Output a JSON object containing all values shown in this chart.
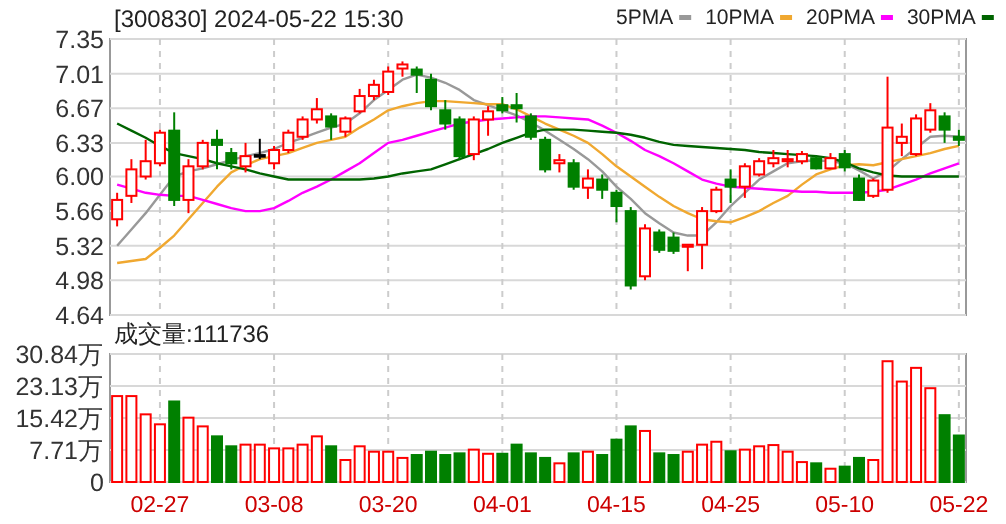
{
  "chart_data": [
    {
      "type": "candlestick",
      "title": "[300830] 2024-05-22 15:30",
      "tick_labels": "y",
      "grid": true,
      "legend": "top right",
      "categories": [
        null,
        null,
        null,
        null,
        null,
        null,
        null,
        null,
        null,
        null,
        null,
        null,
        null,
        null,
        null,
        null,
        null,
        null,
        null,
        null,
        null,
        null,
        null,
        null,
        null,
        null,
        null,
        null,
        null,
        null,
        null,
        null,
        null,
        null,
        null,
        null,
        null,
        null,
        null,
        null,
        null,
        null,
        null,
        null,
        null,
        null,
        null,
        null,
        null,
        null,
        null,
        null,
        null,
        null,
        null,
        null,
        null,
        null,
        null,
        null
      ],
      "ylim": [
        4.64,
        7.35
      ],
      "yticks": [
        7.35,
        7.01,
        6.67,
        6.33,
        {
          "value": 6,
          "label": "6.00"
        },
        5.66,
        5.32,
        4.98,
        4.64
      ],
      "ohlc": [
        [
          5.58,
          5.84,
          5.51,
          5.77
        ],
        [
          5.81,
          6.17,
          5.74,
          6.07
        ],
        [
          6.0,
          6.36,
          5.97,
          6.15
        ],
        [
          6.13,
          6.46,
          6.1,
          6.43
        ],
        [
          6.45,
          6.63,
          5.71,
          5.77
        ],
        [
          5.77,
          6.17,
          5.64,
          6.1
        ],
        [
          6.1,
          6.36,
          6.07,
          6.33
        ],
        [
          6.36,
          6.46,
          6.07,
          6.31
        ],
        [
          6.23,
          6.28,
          6.07,
          6.13
        ],
        [
          6.1,
          6.33,
          6.04,
          6.2
        ],
        [
          6.21,
          6.37,
          6.17,
          6.21
        ],
        [
          6.13,
          6.3,
          6.07,
          6.26
        ],
        [
          6.26,
          6.46,
          6.23,
          6.43
        ],
        [
          6.39,
          6.59,
          6.36,
          6.56
        ],
        [
          6.56,
          6.77,
          6.52,
          6.66
        ],
        [
          6.59,
          6.62,
          6.36,
          6.49
        ],
        [
          6.44,
          6.59,
          6.39,
          6.57
        ],
        [
          6.64,
          6.86,
          6.62,
          6.79
        ],
        [
          6.79,
          6.95,
          6.75,
          6.9
        ],
        [
          6.83,
          7.08,
          6.8,
          7.03
        ],
        [
          7.06,
          7.13,
          6.98,
          7.1
        ],
        [
          7.05,
          7.08,
          6.82,
          7.0
        ],
        [
          6.95,
          7.01,
          6.65,
          6.69
        ],
        [
          6.65,
          6.75,
          6.46,
          6.52
        ],
        [
          6.56,
          6.59,
          6.16,
          6.2
        ],
        [
          6.22,
          6.59,
          6.16,
          6.56
        ],
        [
          6.56,
          6.69,
          6.4,
          6.64
        ],
        [
          6.7,
          6.78,
          6.62,
          6.65
        ],
        [
          6.7,
          6.82,
          6.53,
          6.67
        ],
        [
          6.59,
          6.62,
          6.36,
          6.39
        ],
        [
          6.36,
          6.39,
          6.04,
          6.07
        ],
        [
          6.13,
          6.22,
          6.04,
          6.16
        ],
        [
          6.13,
          6.17,
          5.87,
          5.9
        ],
        [
          5.89,
          6.07,
          5.78,
          5.98
        ],
        [
          5.97,
          6.02,
          5.78,
          5.87
        ],
        [
          5.84,
          5.87,
          5.55,
          5.71
        ],
        [
          5.66,
          5.7,
          4.89,
          4.93
        ],
        [
          5.02,
          5.53,
          4.98,
          5.49
        ],
        [
          5.45,
          5.48,
          5.25,
          5.28
        ],
        [
          5.4,
          5.45,
          5.24,
          5.27
        ],
        [
          5.31,
          5.33,
          5.07,
          5.33
        ],
        [
          5.33,
          5.7,
          5.09,
          5.66
        ],
        [
          5.66,
          5.9,
          5.64,
          5.87
        ],
        [
          5.97,
          6.07,
          5.74,
          5.9
        ],
        [
          5.9,
          6.13,
          5.79,
          6.1
        ],
        [
          6.02,
          6.18,
          6.0,
          6.15
        ],
        [
          6.13,
          6.26,
          6.09,
          6.18
        ],
        [
          6.15,
          6.26,
          6.09,
          6.17
        ],
        [
          6.15,
          6.25,
          6.12,
          6.22
        ],
        [
          6.18,
          6.2,
          6.07,
          6.08
        ],
        [
          6.08,
          6.23,
          6.07,
          6.18
        ],
        [
          6.22,
          6.26,
          6.05,
          6.09
        ],
        [
          5.98,
          6.02,
          5.76,
          5.77
        ],
        [
          5.81,
          5.98,
          5.79,
          5.96
        ],
        [
          5.87,
          6.98,
          5.84,
          6.48
        ],
        [
          6.33,
          6.52,
          6.2,
          6.39
        ],
        [
          6.22,
          6.61,
          6.2,
          6.57
        ],
        [
          6.46,
          6.72,
          6.43,
          6.65
        ],
        [
          6.59,
          6.63,
          6.33,
          6.46
        ],
        [
          6.39,
          6.46,
          6.3,
          6.36
        ]
      ],
      "colors": [
        "#ff0000",
        "#ff0000",
        "#ff0000",
        "#ff0000",
        "#008000",
        "#ff0000",
        "#ff0000",
        "#008000",
        "#008000",
        "#ff0000",
        "#000000",
        "#ff0000",
        "#ff0000",
        "#ff0000",
        "#ff0000",
        "#008000",
        "#ff0000",
        "#ff0000",
        "#ff0000",
        "#ff0000",
        "#ff0000",
        "#008000",
        "#008000",
        "#008000",
        "#008000",
        "#ff0000",
        "#ff0000",
        "#008000",
        "#008000",
        "#008000",
        "#008000",
        "#ff0000",
        "#008000",
        "#ff0000",
        "#008000",
        "#008000",
        "#008000",
        "#ff0000",
        "#008000",
        "#008000",
        "#ff0000",
        "#ff0000",
        "#ff0000",
        "#008000",
        "#ff0000",
        "#ff0000",
        "#ff0000",
        "#ff0000",
        "#ff0000",
        "#008000",
        "#ff0000",
        "#008000",
        "#008000",
        "#ff0000",
        "#ff0000",
        "#ff0000",
        "#ff0000",
        "#ff0000",
        "#008000",
        "#008000"
      ],
      "series": [
        {
          "name": "5PMA",
          "type": "line",
          "color": "#999999",
          "values": [
            5.32,
            5.48,
            5.64,
            5.82,
            6.0,
            6.05,
            6.08,
            6.12,
            6.16,
            6.2,
            6.23,
            6.27,
            6.33,
            6.38,
            6.43,
            6.48,
            6.52,
            6.62,
            6.75,
            6.85,
            6.95,
            7.0,
            6.97,
            6.92,
            6.85,
            6.75,
            6.7,
            6.65,
            6.6,
            6.53,
            6.45,
            6.36,
            6.27,
            6.17,
            6.05,
            5.9,
            5.78,
            5.64,
            5.54,
            5.45,
            5.42,
            5.42,
            5.55,
            5.71,
            5.84,
            5.97,
            6.05,
            6.13,
            6.15,
            6.16,
            6.15,
            6.13,
            6.06,
            5.98,
            6.05,
            6.17,
            6.28,
            6.39,
            6.4,
            6.39
          ]
        },
        {
          "name": "10PMA",
          "type": "line",
          "color": "#f0a830",
          "values": [
            5.15,
            5.17,
            5.19,
            5.3,
            5.42,
            5.58,
            5.74,
            5.9,
            6.04,
            6.11,
            6.17,
            6.2,
            6.23,
            6.28,
            6.33,
            6.36,
            6.39,
            6.48,
            6.56,
            6.65,
            6.69,
            6.72,
            6.74,
            6.74,
            6.73,
            6.72,
            6.71,
            6.71,
            6.66,
            6.59,
            6.52,
            6.46,
            6.4,
            6.33,
            6.22,
            6.1,
            6.0,
            5.9,
            5.8,
            5.71,
            5.64,
            5.58,
            5.56,
            5.55,
            5.6,
            5.66,
            5.74,
            5.81,
            5.92,
            6.02,
            6.07,
            6.11,
            6.12,
            6.11,
            6.14,
            6.17,
            6.2,
            6.23,
            6.27,
            6.3
          ]
        },
        {
          "name": "20PMA",
          "type": "line",
          "color": "#ff00ff",
          "values": [
            5.92,
            5.88,
            5.84,
            5.82,
            5.81,
            5.81,
            5.77,
            5.73,
            5.69,
            5.66,
            5.66,
            5.69,
            5.76,
            5.84,
            5.9,
            5.97,
            6.05,
            6.13,
            6.23,
            6.33,
            6.36,
            6.4,
            6.44,
            6.48,
            6.52,
            6.54,
            6.56,
            6.57,
            6.58,
            6.59,
            6.59,
            6.58,
            6.57,
            6.56,
            6.5,
            6.43,
            6.35,
            6.26,
            6.2,
            6.13,
            6.05,
            5.97,
            5.93,
            5.9,
            5.89,
            5.88,
            5.87,
            5.86,
            5.85,
            5.85,
            5.84,
            5.84,
            5.84,
            5.85,
            5.87,
            5.92,
            5.97,
            6.03,
            6.08,
            6.13
          ]
        },
        {
          "name": "30PMA",
          "type": "line",
          "color": "#006400",
          "values": [
            6.52,
            6.45,
            6.38,
            6.3,
            6.23,
            6.2,
            6.17,
            6.13,
            6.1,
            6.07,
            6.03,
            6.0,
            5.97,
            5.97,
            5.97,
            5.97,
            5.97,
            5.97,
            5.98,
            6.0,
            6.03,
            6.05,
            6.07,
            6.12,
            6.17,
            6.22,
            6.27,
            6.33,
            6.38,
            6.43,
            6.46,
            6.46,
            6.46,
            6.45,
            6.44,
            6.43,
            6.41,
            6.38,
            6.34,
            6.31,
            6.3,
            6.29,
            6.28,
            6.27,
            6.26,
            6.24,
            6.23,
            6.22,
            6.21,
            6.2,
            6.18,
            6.14,
            6.08,
            6.04,
            6.01,
            6.0,
            6.0,
            6.0,
            6.0,
            6.0
          ]
        }
      ]
    },
    {
      "type": "bar",
      "title": "成交量:111736",
      "grid": true,
      "categories": [
        null,
        null,
        null,
        "02-27",
        null,
        null,
        null,
        null,
        null,
        null,
        null,
        "03-08",
        null,
        null,
        null,
        null,
        null,
        null,
        null,
        "03-20",
        null,
        null,
        null,
        null,
        null,
        null,
        null,
        "04-01",
        null,
        null,
        null,
        null,
        null,
        null,
        null,
        "04-15",
        null,
        null,
        null,
        null,
        null,
        null,
        null,
        "04-25",
        null,
        null,
        null,
        null,
        null,
        null,
        null,
        "05-10",
        null,
        null,
        null,
        null,
        null,
        null,
        null,
        "05-22"
      ],
      "ylim": [
        0,
        30.84
      ],
      "yticks": [
        {
          "value": 30.84,
          "label": "30.84万"
        },
        {
          "value": 23.13,
          "label": "23.13万"
        },
        {
          "value": 15.42,
          "label": "15.42万"
        },
        {
          "value": 7.71,
          "label": "7.71万"
        },
        0
      ],
      "values": [
        20.7,
        20.7,
        16.3,
        13.9,
        19.4,
        15.5,
        13.4,
        11.0,
        8.6,
        9.0,
        9.0,
        8.1,
        8.1,
        9.0,
        11.0,
        8.6,
        5.3,
        8.6,
        7.3,
        7.3,
        5.8,
        6.5,
        7.3,
        6.5,
        6.9,
        7.8,
        6.8,
        6.8,
        9.0,
        6.9,
        5.8,
        4.5,
        6.9,
        7.3,
        6.5,
        10.2,
        13.4,
        12.3,
        6.9,
        6.5,
        7.3,
        9.0,
        9.7,
        7.4,
        7.8,
        8.6,
        8.9,
        7.3,
        4.8,
        4.5,
        3.2,
        3.7,
        5.8,
        5.3,
        29.1,
        24.2,
        27.5,
        22.6,
        16.1,
        11.2
      ],
      "colors": [
        "#ff0000",
        "#ff0000",
        "#ff0000",
        "#ff0000",
        "#008000",
        "#ff0000",
        "#ff0000",
        "#008000",
        "#008000",
        "#ff0000",
        "#ff0000",
        "#ff0000",
        "#ff0000",
        "#ff0000",
        "#ff0000",
        "#008000",
        "#ff0000",
        "#ff0000",
        "#ff0000",
        "#ff0000",
        "#ff0000",
        "#008000",
        "#008000",
        "#008000",
        "#008000",
        "#ff0000",
        "#ff0000",
        "#008000",
        "#008000",
        "#008000",
        "#008000",
        "#ff0000",
        "#008000",
        "#ff0000",
        "#008000",
        "#008000",
        "#008000",
        "#ff0000",
        "#008000",
        "#008000",
        "#ff0000",
        "#ff0000",
        "#ff0000",
        "#008000",
        "#ff0000",
        "#ff0000",
        "#ff0000",
        "#ff0000",
        "#ff0000",
        "#008000",
        "#ff0000",
        "#008000",
        "#008000",
        "#ff0000",
        "#ff0000",
        "#ff0000",
        "#ff0000",
        "#ff0000",
        "#008000",
        "#008000"
      ]
    }
  ]
}
